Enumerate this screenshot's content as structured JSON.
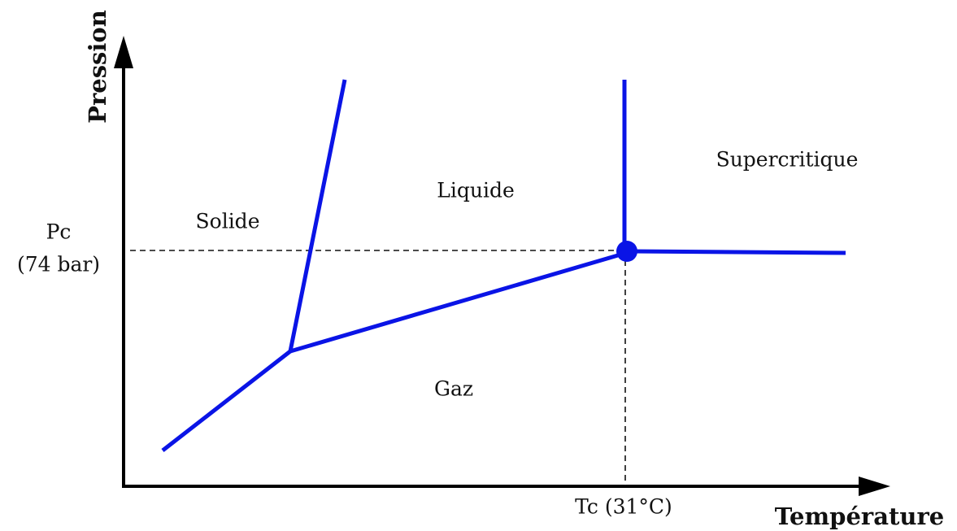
{
  "axes": {
    "y_label": "Pression",
    "x_label": "Température"
  },
  "critical_point": {
    "pressure_label": "Pc",
    "pressure_value": "(74 bar)",
    "temperature_label": "Tc (31°C)"
  },
  "regions": {
    "solid": "Solide",
    "liquid": "Liquide",
    "gas": "Gaz",
    "supercritical": "Supercritique"
  }
}
